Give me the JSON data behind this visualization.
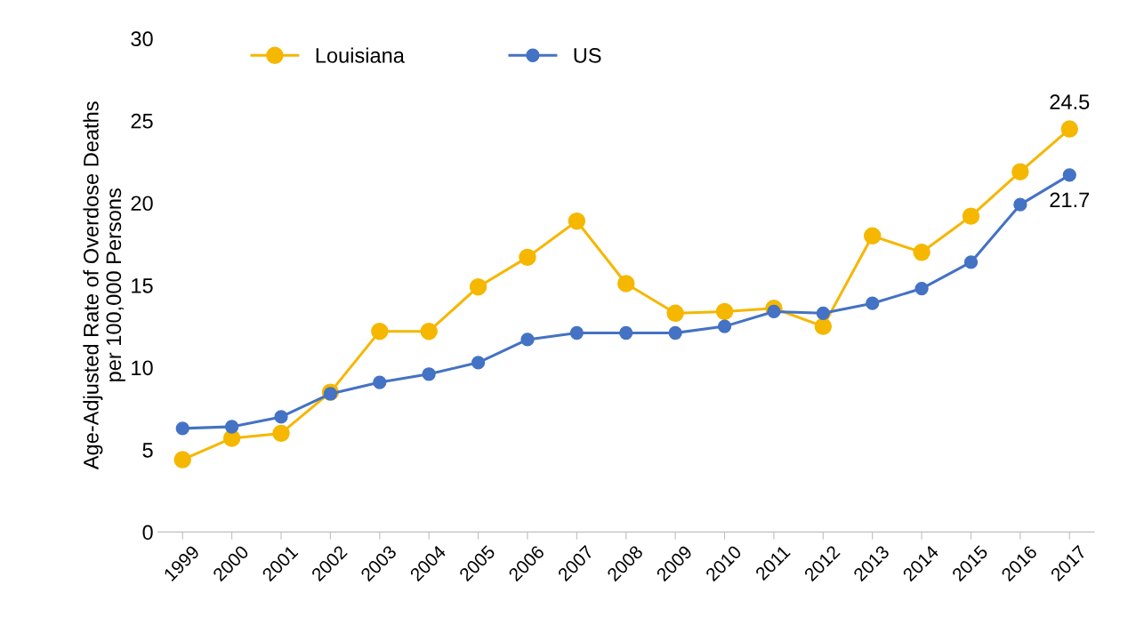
{
  "chart_data": {
    "type": "line",
    "ylabel": "Age-Adjusted Rate of Overdose Deaths\nper 100,000 Persons",
    "categories": [
      "1999",
      "2000",
      "2001",
      "2002",
      "2003",
      "2004",
      "2005",
      "2006",
      "2007",
      "2008",
      "2009",
      "2010",
      "2011",
      "2012",
      "2013",
      "2014",
      "2015",
      "2016",
      "2017"
    ],
    "series": [
      {
        "name": "Louisiana",
        "color": "#f5b700",
        "values": [
          4.4,
          5.7,
          6.0,
          8.5,
          12.2,
          12.2,
          14.9,
          16.7,
          18.9,
          15.1,
          13.3,
          13.4,
          13.6,
          12.5,
          18.0,
          17.0,
          19.2,
          21.9,
          24.5
        ]
      },
      {
        "name": "US",
        "color": "#4472c4",
        "values": [
          6.3,
          6.4,
          7.0,
          8.4,
          9.1,
          9.6,
          10.3,
          11.7,
          12.1,
          12.1,
          12.1,
          12.5,
          13.4,
          13.3,
          13.9,
          14.8,
          16.4,
          19.9,
          21.7
        ]
      }
    ],
    "ylim": [
      0,
      30
    ],
    "yticks": [
      0,
      5,
      10,
      15,
      20,
      25,
      30
    ],
    "annotations": [
      {
        "text": "24.5",
        "x": "2017",
        "y": 24.5
      },
      {
        "text": "21.7",
        "x": "2017",
        "y": 21.7
      }
    ],
    "legend": "top left",
    "marker": "circle",
    "line_style": "solid",
    "grid": false
  }
}
